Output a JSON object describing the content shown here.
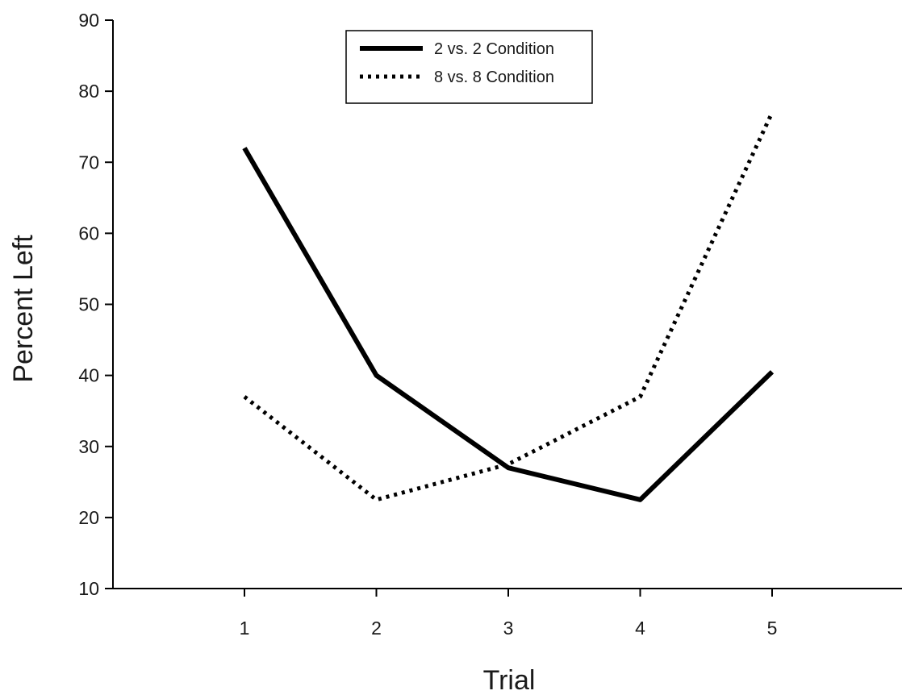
{
  "chart_data": {
    "type": "line",
    "title": "",
    "xlabel": "Trial",
    "ylabel": "Percent Left",
    "x": [
      1,
      2,
      3,
      4,
      5
    ],
    "xlim": [
      1,
      6
    ],
    "ylim": [
      10,
      90
    ],
    "xticks": [
      "1",
      "2",
      "3",
      "4",
      "5"
    ],
    "yticks": [
      "10",
      "20",
      "30",
      "40",
      "50",
      "60",
      "70",
      "80",
      "90"
    ],
    "grid": false,
    "legend_position": "top-center",
    "series": [
      {
        "name": "2 vs. 2 Condition",
        "values": [
          72,
          40,
          27,
          22.5,
          40.5
        ],
        "style": "solid",
        "color": "#000000"
      },
      {
        "name": "8 vs. 8 Condition",
        "values": [
          37,
          22.5,
          27.5,
          37,
          77
        ],
        "style": "dotted",
        "color": "#000000"
      }
    ]
  }
}
